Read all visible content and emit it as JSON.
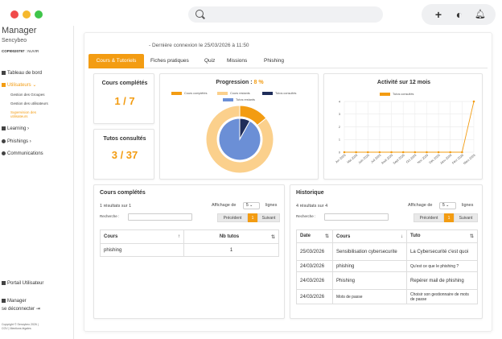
{
  "sidebar": {
    "title": "Manager",
    "user": "Sencybeo",
    "code_bold": "COPI0020797",
    "code_rest": " : NUVIR",
    "items": [
      {
        "label": "Tableau de bord",
        "icon": "dashboard-icon"
      },
      {
        "label": "Utilisateurs",
        "icon": "users-icon",
        "chev": "⌄"
      },
      {
        "label": "Gestion des Groupes"
      },
      {
        "label": "Gestion des utilisateurs"
      },
      {
        "label": "Supervision des"
      },
      {
        "label": "utilisateurs"
      },
      {
        "label": "Learning",
        "chev": "›"
      },
      {
        "label": "Phishings",
        "chev": "›"
      },
      {
        "label": "Communications"
      }
    ],
    "portal": "Portail Utilisateur",
    "manager": "Manager",
    "logout": "se déconnecter ⇥",
    "footer1": "Copyright © Sencybeo 2026 |",
    "footer2": "CGV | Mentions légales"
  },
  "header": {
    "last_login": "- Dernière connexion le 25/03/2026 à 11:50"
  },
  "tabs": [
    "Cours & Tutoriels",
    "Fiches pratiques",
    "Quiz",
    "Missions",
    "Phishing"
  ],
  "stats": {
    "courses_label": "Cours complétés",
    "courses_value": "1 / 7",
    "tutos_label": "Tutos consultés",
    "tutos_value": "3 / 37"
  },
  "progression": {
    "title_prefix": "Progression : ",
    "title_value": "8 %",
    "legend": [
      "Cours complétés",
      "Cours restants",
      "Tutos consultés",
      "Tutos restants"
    ],
    "colors": [
      "#f39c12",
      "#fbd08c",
      "#1f2d5a",
      "#6b8fd6"
    ]
  },
  "activity": {
    "title": "Activité sur 12 mois",
    "legend": "Tutos consultés",
    "color": "#f39c12",
    "y_ticks": [
      "0",
      "1",
      "2",
      "3",
      "4"
    ]
  },
  "chart_data": [
    {
      "type": "pie",
      "title": "Progression : 8 %",
      "rings": [
        {
          "name": "Cours",
          "labels": [
            "Cours complétés",
            "Cours restants"
          ],
          "values": [
            1,
            6
          ]
        },
        {
          "name": "Tutos",
          "labels": [
            "Tutos consultés",
            "Tutos restants"
          ],
          "values": [
            3,
            34
          ]
        }
      ]
    },
    {
      "type": "line",
      "title": "Activité sur 12 mois",
      "categories": [
        "Avr 2025",
        "Mai 2025",
        "Juin 2025",
        "Juil 2025",
        "Août 2025",
        "Sept 2025",
        "Oct 2025",
        "Nov 2025",
        "Déc 2025",
        "Janv 2026",
        "Févr 2026",
        "Mars 2026"
      ],
      "series": [
        {
          "name": "Tutos consultés",
          "values": [
            0,
            0,
            0,
            0,
            0,
            0,
            0,
            0,
            0,
            0,
            0,
            4
          ]
        }
      ],
      "ylim": [
        0,
        4
      ],
      "grid": true,
      "legend": "top"
    }
  ],
  "completed": {
    "title": "Cours complétés",
    "results": "1 résultats sur 1",
    "page_size_label": "Affichage de",
    "page_size": "5",
    "page_size_suffix": "lignes",
    "search_label": "Recherche :",
    "prev": "Précédent",
    "page": "1",
    "next": "Suivant",
    "headers": [
      "Cours",
      "Nb tutos"
    ],
    "sort_glyph": "↑",
    "rows": [
      [
        "phishing",
        "1"
      ]
    ]
  },
  "history": {
    "title": "Historique",
    "results": "4 résultats sur 4",
    "page_size_label": "Affichage de",
    "page_size": "5",
    "page_size_suffix": "lignes",
    "search_label": "Recherche :",
    "prev": "Précédent",
    "page": "1",
    "next": "Suivant",
    "headers": [
      "Date",
      "Cours",
      "Tuto"
    ],
    "sort_glyph": "↓",
    "rows": [
      [
        "25/03/2026",
        "Sensibilisation cybersecurite",
        "La Cybersecurité c'est quoi"
      ],
      [
        "24/03/2026",
        "phishing",
        "Qu'est ce que le phishing ?"
      ],
      [
        "24/03/2026",
        "Phishing",
        "Repérer mail de phishing"
      ],
      [
        "24/03/2026",
        "Mots de passe",
        "Choisir son gestionnaire de mots de passe"
      ]
    ]
  }
}
